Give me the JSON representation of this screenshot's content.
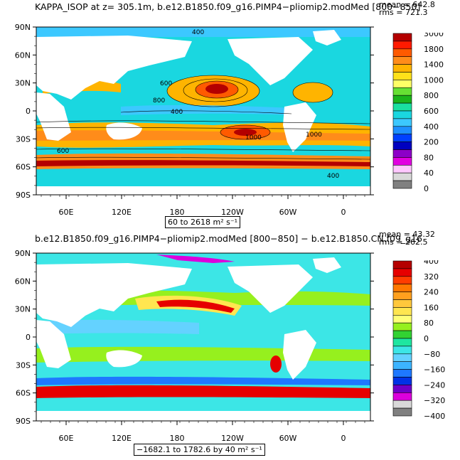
{
  "panels": [
    {
      "title": "KAPPA_ISOP at z= 305.1m, b.e12.B1850.f09_g16.PIMP4−pliomip2.modMed [800−850]",
      "mean_text": "mean = 642.8",
      "rms_text": "rms = 721.3",
      "range_text": "60 to 2618 m² s⁻¹",
      "colorbar": {
        "labels": [
          "3000",
          "1800",
          "1400",
          "1000",
          "800",
          "600",
          "400",
          "200",
          "80",
          "40",
          "0"
        ],
        "colors": [
          "#b40000",
          "#ff1a00",
          "#ff5a00",
          "#ff8c1a",
          "#ffb400",
          "#ffe11a",
          "#ffff66",
          "#66e033",
          "#1ab41a",
          "#1ae0a0",
          "#1ad7e0",
          "#3cc8ff",
          "#1e90ff",
          "#0040ff",
          "#0000c0",
          "#8c00c8",
          "#e100e1",
          "#ffc8ff",
          "#d9d9d9",
          "#808080"
        ]
      },
      "contour_labels": [
        "400",
        "600",
        "800",
        "1000",
        "400",
        "400",
        "600",
        "800",
        "1000",
        "600",
        "400"
      ]
    },
    {
      "title": "b.e12.B1850.f09_g16.PIMP4−pliomip2.modMed [800−850] − b.e12.B1850.CN.f09_g16",
      "mean_text": "mean = 43.32",
      "rms_text": "rms = 262.5",
      "range_text": "−1682.1 to 1782.6 by 40 m² s⁻¹",
      "colorbar": {
        "labels": [
          "400",
          "320",
          "240",
          "160",
          "80",
          "0",
          "−80",
          "−160",
          "−240",
          "−320",
          "−400"
        ],
        "colors": [
          "#b40000",
          "#e60000",
          "#ff3c00",
          "#ff7800",
          "#ffa01e",
          "#ffc83c",
          "#ffe650",
          "#ffff78",
          "#96f01e",
          "#32d232",
          "#1ee6a0",
          "#3ce6e6",
          "#64d2ff",
          "#3cb4ff",
          "#1e78ff",
          "#0032e6",
          "#6e00c8",
          "#dc00dc",
          "#d9d9d9",
          "#808080"
        ]
      },
      "contour_labels": []
    }
  ],
  "axes": {
    "lat_labels": [
      "90N",
      "60N",
      "30N",
      "0",
      "30S",
      "60S",
      "90S"
    ],
    "lon_labels": [
      "60E",
      "120E",
      "180",
      "120W",
      "60W",
      "0"
    ]
  }
}
